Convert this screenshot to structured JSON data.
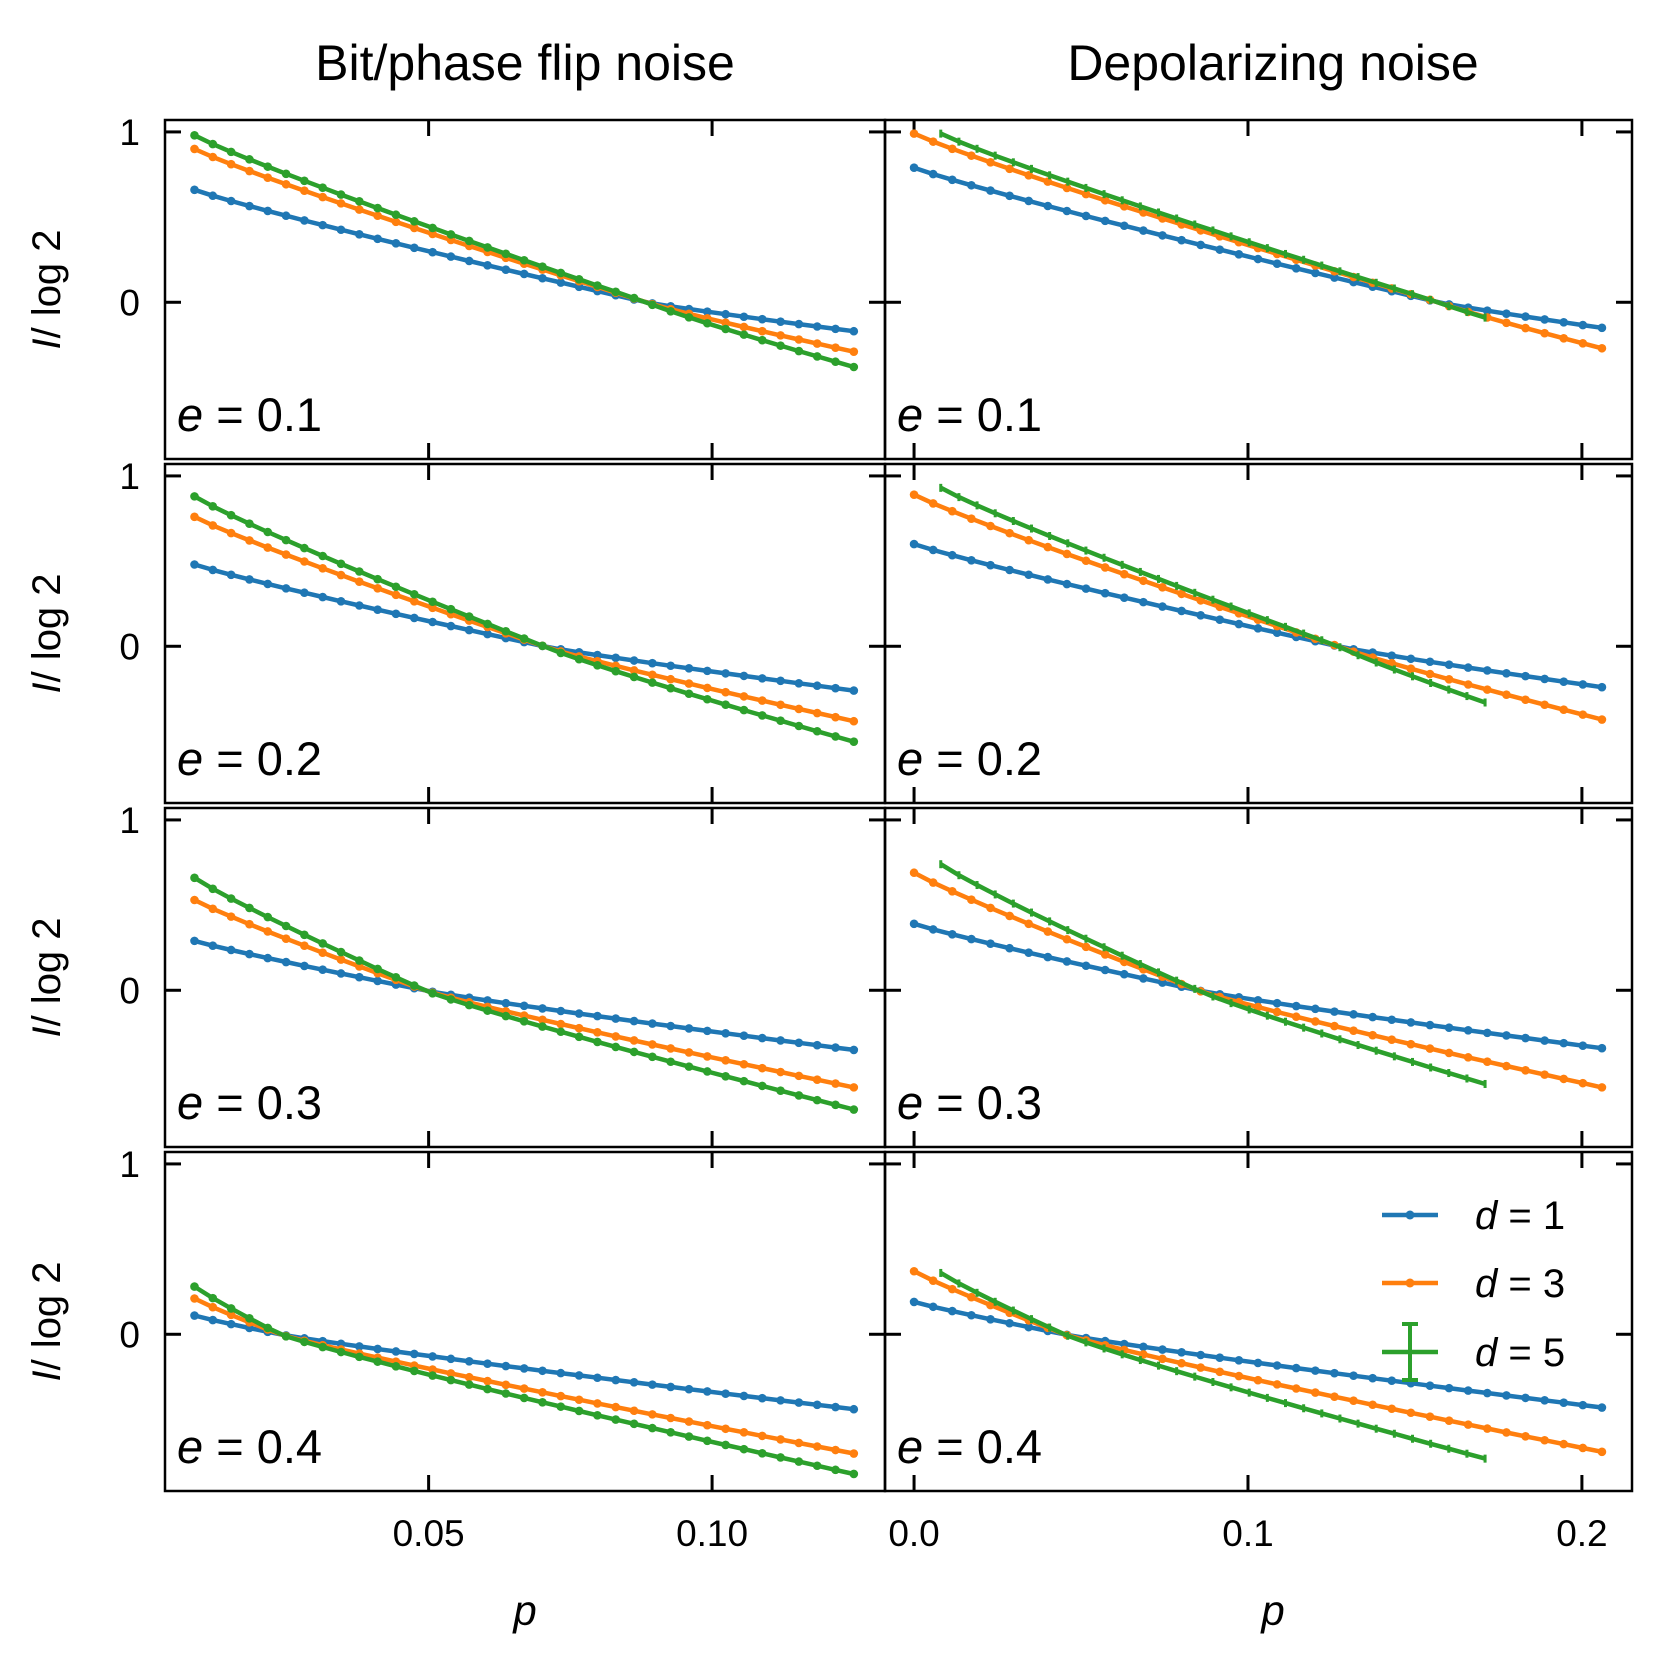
{
  "figure": {
    "col_titles": [
      "Bit/phase flip noise",
      "Depolarizing noise"
    ],
    "ylabel": {
      "var": "I",
      "rest": "/ log 2"
    },
    "xlabel": "p",
    "ytick_labels": [
      "1",
      "0"
    ],
    "xtick_labels_left": [
      "0.05",
      "0.10"
    ],
    "xtick_labels_right": [
      "0.0",
      "0.1",
      "0.2"
    ],
    "legend": [
      {
        "var": "d",
        "rest": " = 1",
        "color": "#1f77b4"
      },
      {
        "var": "d",
        "rest": " = 3",
        "color": "#ff7f0e"
      },
      {
        "var": "d",
        "rest": " = 5",
        "color": "#2ca02c",
        "errorbar": true
      }
    ]
  },
  "chart_data": [
    {
      "type": "line",
      "title": "Bit/phase flip noise",
      "panel_label": "e = 0.1",
      "e": 0.1,
      "xlabel": "p",
      "ylabel": "I / log 2",
      "xlim": [
        0.0035,
        0.1305
      ],
      "ylim": [
        -0.92,
        1.07
      ],
      "series": [
        {
          "name": "d = 1",
          "x0": 0.0087,
          "x1": 0.125,
          "y0": 0.66,
          "yc": 0.0,
          "y1": -0.17,
          "xc": 0.0884,
          "n": 37
        },
        {
          "name": "d = 3",
          "x0": 0.0087,
          "x1": 0.125,
          "y0": 0.9,
          "yc": 0.0,
          "y1": -0.29,
          "xc": 0.0884,
          "n": 37
        },
        {
          "name": "d = 5",
          "x0": 0.0087,
          "x1": 0.125,
          "y0": 0.98,
          "yc": 0.0,
          "y1": -0.38,
          "xc": 0.0884,
          "n": 37
        }
      ]
    },
    {
      "type": "line",
      "title": "Depolarizing noise",
      "panel_label": "e = 0.1",
      "e": 0.1,
      "xlabel": "p",
      "ylabel": "I / log 2",
      "xlim": [
        -0.0087,
        0.215
      ],
      "ylim": [
        -0.92,
        1.07
      ],
      "series": [
        {
          "name": "d = 1",
          "x0": 0.0,
          "x1": 0.206,
          "y0": 0.79,
          "yc": 0.0,
          "y1": -0.15,
          "xc": 0.157,
          "n": 37
        },
        {
          "name": "d = 3",
          "x0": 0.0,
          "x1": 0.206,
          "y0": 0.99,
          "yc": 0.0,
          "y1": -0.27,
          "xc": 0.157,
          "n": 37
        },
        {
          "name": "d = 5",
          "x0": 0.008,
          "x1": 0.171,
          "y0": 0.99,
          "yc": 0.0,
          "y1": -0.09,
          "xc": 0.157,
          "n": 31
        }
      ]
    },
    {
      "type": "line",
      "title": "Bit/phase flip noise",
      "panel_label": "e = 0.2",
      "e": 0.2,
      "xlabel": "p",
      "ylabel": "I / log 2",
      "xlim": [
        0.0035,
        0.1305
      ],
      "ylim": [
        -0.92,
        1.07
      ],
      "series": [
        {
          "name": "d = 1",
          "x0": 0.0087,
          "x1": 0.125,
          "y0": 0.48,
          "yc": 0.0,
          "y1": -0.26,
          "xc": 0.0703,
          "n": 37
        },
        {
          "name": "d = 3",
          "x0": 0.0087,
          "x1": 0.125,
          "y0": 0.76,
          "yc": 0.0,
          "y1": -0.44,
          "xc": 0.0703,
          "n": 37
        },
        {
          "name": "d = 5",
          "x0": 0.0087,
          "x1": 0.125,
          "y0": 0.88,
          "yc": 0.0,
          "y1": -0.56,
          "xc": 0.0703,
          "n": 37
        }
      ]
    },
    {
      "type": "line",
      "title": "Depolarizing noise",
      "panel_label": "e = 0.2",
      "e": 0.2,
      "xlabel": "p",
      "ylabel": "I / log 2",
      "xlim": [
        -0.0087,
        0.215
      ],
      "ylim": [
        -0.92,
        1.07
      ],
      "series": [
        {
          "name": "d = 1",
          "x0": 0.0,
          "x1": 0.206,
          "y0": 0.6,
          "yc": 0.0,
          "y1": -0.24,
          "xc": 0.127,
          "n": 37
        },
        {
          "name": "d = 3",
          "x0": 0.0,
          "x1": 0.206,
          "y0": 0.89,
          "yc": 0.0,
          "y1": -0.43,
          "xc": 0.127,
          "n": 37
        },
        {
          "name": "d = 5",
          "x0": 0.008,
          "x1": 0.171,
          "y0": 0.93,
          "yc": 0.0,
          "y1": -0.33,
          "xc": 0.127,
          "n": 31
        }
      ]
    },
    {
      "type": "line",
      "title": "Bit/phase flip noise",
      "panel_label": "e = 0.3",
      "e": 0.3,
      "xlabel": "p",
      "ylabel": "I / log 2",
      "xlim": [
        0.0035,
        0.1305
      ],
      "ylim": [
        -0.92,
        1.07
      ],
      "series": [
        {
          "name": "d = 1",
          "x0": 0.0087,
          "x1": 0.125,
          "y0": 0.29,
          "yc": 0.0,
          "y1": -0.35,
          "xc": 0.0493,
          "n": 37
        },
        {
          "name": "d = 3",
          "x0": 0.0087,
          "x1": 0.125,
          "y0": 0.53,
          "yc": 0.0,
          "y1": -0.57,
          "xc": 0.0493,
          "n": 37
        },
        {
          "name": "d = 5",
          "x0": 0.0087,
          "x1": 0.125,
          "y0": 0.66,
          "yc": 0.0,
          "y1": -0.7,
          "xc": 0.0493,
          "n": 37
        }
      ]
    },
    {
      "type": "line",
      "title": "Depolarizing noise",
      "panel_label": "e = 0.3",
      "e": 0.3,
      "xlabel": "p",
      "ylabel": "I / log 2",
      "xlim": [
        -0.0087,
        0.215
      ],
      "ylim": [
        -0.92,
        1.07
      ],
      "series": [
        {
          "name": "d = 1",
          "x0": 0.0,
          "x1": 0.206,
          "y0": 0.39,
          "yc": 0.0,
          "y1": -0.34,
          "xc": 0.085,
          "n": 37
        },
        {
          "name": "d = 3",
          "x0": 0.0,
          "x1": 0.206,
          "y0": 0.69,
          "yc": 0.0,
          "y1": -0.57,
          "xc": 0.085,
          "n": 37
        },
        {
          "name": "d = 5",
          "x0": 0.008,
          "x1": 0.171,
          "y0": 0.74,
          "yc": 0.0,
          "y1": -0.55,
          "xc": 0.085,
          "n": 31
        }
      ]
    },
    {
      "type": "line",
      "title": "Bit/phase flip noise",
      "panel_label": "e = 0.4",
      "e": 0.4,
      "xlabel": "p",
      "ylabel": "I / log 2",
      "xlim": [
        0.0035,
        0.1305
      ],
      "ylim": [
        -0.92,
        1.07
      ],
      "series": [
        {
          "name": "d = 1",
          "x0": 0.0087,
          "x1": 0.125,
          "y0": 0.11,
          "yc": 0.0,
          "y1": -0.44,
          "xc": 0.0238,
          "n": 37
        },
        {
          "name": "d = 3",
          "x0": 0.0087,
          "x1": 0.125,
          "y0": 0.21,
          "yc": 0.0,
          "y1": -0.7,
          "xc": 0.0238,
          "n": 37
        },
        {
          "name": "d = 5",
          "x0": 0.0087,
          "x1": 0.125,
          "y0": 0.28,
          "yc": 0.0,
          "y1": -0.82,
          "xc": 0.0238,
          "n": 37
        }
      ]
    },
    {
      "type": "line",
      "title": "Depolarizing noise",
      "panel_label": "e = 0.4",
      "e": 0.4,
      "xlabel": "p",
      "ylabel": "I / log 2",
      "xlim": [
        -0.0087,
        0.215
      ],
      "ylim": [
        -0.92,
        1.07
      ],
      "series": [
        {
          "name": "d = 1",
          "x0": 0.0,
          "x1": 0.206,
          "y0": 0.19,
          "yc": 0.0,
          "y1": -0.43,
          "xc": 0.045,
          "n": 37
        },
        {
          "name": "d = 3",
          "x0": 0.0,
          "x1": 0.206,
          "y0": 0.37,
          "yc": 0.0,
          "y1": -0.69,
          "xc": 0.045,
          "n": 37
        },
        {
          "name": "d = 5",
          "x0": 0.008,
          "x1": 0.171,
          "y0": 0.36,
          "yc": 0.0,
          "y1": -0.73,
          "xc": 0.045,
          "n": 31
        }
      ]
    }
  ]
}
